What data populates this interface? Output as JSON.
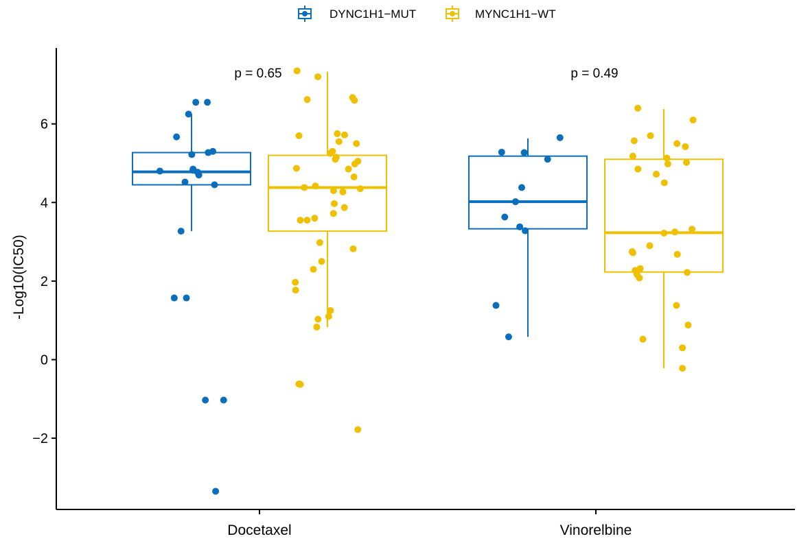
{
  "chart_data": {
    "type": "box",
    "title": "",
    "xlabel": "",
    "ylabel": "-Log10(IC50)",
    "ylim": [
      -3.7,
      7.9
    ],
    "yticks": [
      -2,
      0,
      2,
      4,
      6
    ],
    "ytick_labels": [
      "−2",
      "0",
      "2",
      "4",
      "6"
    ],
    "categories": [
      "Docetaxel",
      "Vinorelbine"
    ],
    "legend_position": "top",
    "grid": false,
    "series": [
      {
        "name": "DYNC1H1−MUT",
        "color": "#0A6EBD",
        "boxes": [
          {
            "category": "Docetaxel",
            "q1": 4.45,
            "median": 4.78,
            "q3": 5.27,
            "whisker_low": 3.27,
            "whisker_high": 6.25,
            "points": [
              6.55,
              6.55,
              6.25,
              5.67,
              5.3,
              5.27,
              5.22,
              4.85,
              4.82,
              4.8,
              4.77,
              4.7,
              4.52,
              4.45,
              3.27,
              1.57,
              1.57,
              -1.03,
              -1.03,
              -3.35
            ]
          },
          {
            "category": "Vinorelbine",
            "q1": 3.33,
            "median": 4.02,
            "q3": 5.18,
            "whisker_low": 0.58,
            "whisker_high": 5.63,
            "points": [
              5.65,
              5.28,
              5.27,
              5.1,
              4.38,
              4.02,
              3.63,
              3.38,
              3.28,
              1.38,
              0.58
            ]
          }
        ]
      },
      {
        "name": "MYNC1H1−WT",
        "color": "#EFC000",
        "boxes": [
          {
            "category": "Docetaxel",
            "q1": 3.27,
            "median": 4.38,
            "q3": 5.2,
            "whisker_low": 0.83,
            "whisker_high": 7.33,
            "points": [
              7.35,
              7.2,
              6.67,
              6.62,
              6.6,
              5.75,
              5.72,
              5.7,
              5.55,
              5.5,
              5.3,
              5.25,
              5.15,
              5.1,
              5.05,
              4.98,
              4.87,
              4.85,
              4.65,
              4.42,
              4.38,
              4.35,
              4.3,
              4.27,
              3.97,
              3.87,
              3.72,
              3.6,
              3.55,
              3.55,
              2.98,
              2.82,
              2.5,
              2.3,
              1.97,
              1.77,
              1.25,
              1.1,
              1.03,
              0.83,
              -0.62,
              -0.63,
              -1.78
            ]
          },
          {
            "category": "Vinorelbine",
            "q1": 2.23,
            "median": 3.23,
            "q3": 5.1,
            "whisker_low": -0.22,
            "whisker_high": 6.38,
            "points": [
              6.4,
              6.1,
              5.7,
              5.57,
              5.5,
              5.42,
              5.18,
              5.13,
              5.02,
              4.98,
              4.85,
              4.72,
              4.5,
              3.32,
              3.25,
              3.22,
              2.9,
              2.75,
              2.72,
              2.68,
              2.32,
              2.27,
              2.22,
              2.17,
              2.08,
              1.38,
              0.88,
              0.52,
              0.3,
              -0.22
            ]
          }
        ]
      }
    ],
    "annotations": [
      {
        "category": "Docetaxel",
        "text": "p = 0.65"
      },
      {
        "category": "Vinorelbine",
        "text": "p = 0.49"
      }
    ]
  }
}
